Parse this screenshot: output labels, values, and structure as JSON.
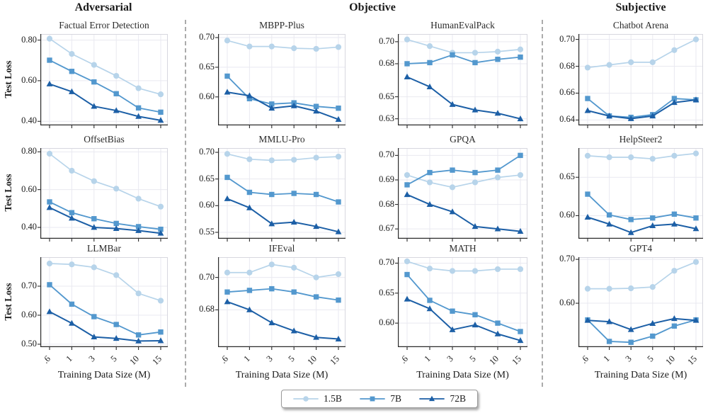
{
  "figure": {
    "y_label": "Test Loss",
    "x_label": "Training Data Size (M)",
    "x_ticks": [
      ".6",
      "1",
      "3",
      "5",
      "10",
      "15"
    ]
  },
  "groups": [
    {
      "label": "Adversarial"
    },
    {
      "label": "Objective"
    },
    {
      "label": "Subjective"
    }
  ],
  "legend": [
    {
      "label": "1.5B",
      "marker": "circle",
      "color": "#b7d4ea"
    },
    {
      "label": "7B",
      "marker": "square",
      "color": "#5398ce"
    },
    {
      "label": "72B",
      "marker": "triangle",
      "color": "#1c5fa6"
    }
  ],
  "chart_data": [
    {
      "type": "line",
      "title": "Factual Error Detection",
      "group": "Adversarial",
      "categories": [
        ".6",
        "1",
        "3",
        "5",
        "10",
        "15"
      ],
      "ylim": [
        0.38,
        0.83
      ],
      "yticks": [
        0.4,
        0.6,
        0.8
      ],
      "series": [
        {
          "name": "1.5B",
          "values": [
            0.807,
            0.732,
            0.678,
            0.624,
            0.563,
            0.533
          ]
        },
        {
          "name": "7B",
          "values": [
            0.701,
            0.646,
            0.594,
            0.536,
            0.466,
            0.445
          ]
        },
        {
          "name": "72B",
          "values": [
            0.584,
            0.546,
            0.474,
            0.453,
            0.424,
            0.405
          ]
        }
      ]
    },
    {
      "type": "line",
      "title": "MBPP-Plus",
      "group": "Objective",
      "categories": [
        ".6",
        "1",
        "3",
        "5",
        "10",
        "15"
      ],
      "ylim": [
        0.552,
        0.706
      ],
      "yticks": [
        0.6,
        0.65,
        0.7
      ],
      "series": [
        {
          "name": "1.5B",
          "values": [
            0.695,
            0.685,
            0.685,
            0.682,
            0.681,
            0.684
          ]
        },
        {
          "name": "7B",
          "values": [
            0.635,
            0.597,
            0.588,
            0.59,
            0.584,
            0.581
          ]
        },
        {
          "name": "72B",
          "values": [
            0.608,
            0.602,
            0.581,
            0.585,
            0.576,
            0.562
          ]
        }
      ]
    },
    {
      "type": "line",
      "title": "HumanEvalPack",
      "group": "Objective",
      "categories": [
        ".6",
        "1",
        "3",
        "5",
        "10",
        "15"
      ],
      "ylim": [
        0.624,
        0.707
      ],
      "yticks": [
        0.63,
        0.65,
        0.68,
        0.7
      ],
      "series": [
        {
          "name": "1.5B",
          "values": [
            0.702,
            0.696,
            0.69,
            0.69,
            0.691,
            0.693
          ]
        },
        {
          "name": "7B",
          "values": [
            0.68,
            0.681,
            0.688,
            0.681,
            0.684,
            0.686
          ]
        },
        {
          "name": "72B",
          "values": [
            0.668,
            0.659,
            0.643,
            0.638,
            0.635,
            0.63
          ]
        }
      ]
    },
    {
      "type": "line",
      "title": "Chatbot Arena",
      "group": "Subjective",
      "categories": [
        ".6",
        "1",
        "3",
        "5",
        "10",
        "15"
      ],
      "ylim": [
        0.636,
        0.704
      ],
      "yticks": [
        0.64,
        0.66,
        0.68,
        0.7
      ],
      "series": [
        {
          "name": "1.5B",
          "values": [
            0.679,
            0.681,
            0.683,
            0.683,
            0.692,
            0.7
          ]
        },
        {
          "name": "7B",
          "values": [
            0.656,
            0.643,
            0.642,
            0.644,
            0.656,
            0.655
          ]
        },
        {
          "name": "72B",
          "values": [
            0.647,
            0.643,
            0.641,
            0.643,
            0.653,
            0.655
          ]
        }
      ]
    },
    {
      "type": "line",
      "title": "OffsetBias",
      "group": "Adversarial",
      "categories": [
        ".6",
        "1",
        "3",
        "5",
        "10",
        "15"
      ],
      "ylim": [
        0.34,
        0.82
      ],
      "yticks": [
        0.4,
        0.6,
        0.8
      ],
      "series": [
        {
          "name": "1.5B",
          "values": [
            0.79,
            0.7,
            0.645,
            0.605,
            0.552,
            0.51
          ]
        },
        {
          "name": "7B",
          "values": [
            0.535,
            0.478,
            0.446,
            0.421,
            0.404,
            0.39
          ]
        },
        {
          "name": "72B",
          "values": [
            0.505,
            0.449,
            0.4,
            0.394,
            0.383,
            0.369
          ]
        }
      ]
    },
    {
      "type": "line",
      "title": "MMLU-Pro",
      "group": "Objective",
      "categories": [
        ".6",
        "1",
        "3",
        "5",
        "10",
        "15"
      ],
      "ylim": [
        0.538,
        0.708
      ],
      "yticks": [
        0.55,
        0.6,
        0.65,
        0.7
      ],
      "series": [
        {
          "name": "1.5B",
          "values": [
            0.697,
            0.687,
            0.685,
            0.686,
            0.69,
            0.692
          ]
        },
        {
          "name": "7B",
          "values": [
            0.653,
            0.625,
            0.621,
            0.623,
            0.621,
            0.607
          ]
        },
        {
          "name": "72B",
          "values": [
            0.613,
            0.596,
            0.566,
            0.569,
            0.561,
            0.551
          ]
        }
      ]
    },
    {
      "type": "line",
      "title": "GPQA",
      "group": "Objective",
      "categories": [
        ".6",
        "1",
        "3",
        "5",
        "10",
        "15"
      ],
      "ylim": [
        0.666,
        0.703
      ],
      "yticks": [
        0.67,
        0.68,
        0.69,
        0.7
      ],
      "series": [
        {
          "name": "1.5B",
          "values": [
            0.692,
            0.689,
            0.687,
            0.689,
            0.691,
            0.692
          ]
        },
        {
          "name": "7B",
          "values": [
            0.688,
            0.693,
            0.694,
            0.693,
            0.694,
            0.7
          ]
        },
        {
          "name": "72B",
          "values": [
            0.684,
            0.68,
            0.677,
            0.671,
            0.67,
            0.669
          ]
        }
      ]
    },
    {
      "type": "line",
      "title": "HelpSteer2",
      "group": "Subjective",
      "categories": [
        ".6",
        "1",
        "3",
        "5",
        "10",
        "15"
      ],
      "ylim": [
        0.57,
        0.688
      ],
      "yticks": [
        0.6,
        0.65
      ],
      "series": [
        {
          "name": "1.5B",
          "values": [
            0.678,
            0.676,
            0.676,
            0.674,
            0.678,
            0.681
          ]
        },
        {
          "name": "7B",
          "values": [
            0.628,
            0.601,
            0.595,
            0.597,
            0.602,
            0.597
          ]
        },
        {
          "name": "72B",
          "values": [
            0.598,
            0.589,
            0.578,
            0.587,
            0.589,
            0.583
          ]
        }
      ]
    },
    {
      "type": "line",
      "title": "LLMBar",
      "group": "Adversarial",
      "categories": [
        ".6",
        "1",
        "3",
        "5",
        "10",
        "15"
      ],
      "ylim": [
        0.49,
        0.8
      ],
      "yticks": [
        0.5,
        0.6,
        0.7
      ],
      "series": [
        {
          "name": "1.5B",
          "values": [
            0.778,
            0.775,
            0.765,
            0.738,
            0.675,
            0.65
          ]
        },
        {
          "name": "7B",
          "values": [
            0.705,
            0.638,
            0.595,
            0.568,
            0.532,
            0.542
          ]
        },
        {
          "name": "72B",
          "values": [
            0.612,
            0.572,
            0.525,
            0.52,
            0.511,
            0.512
          ]
        }
      ]
    },
    {
      "type": "line",
      "title": "IFEval",
      "group": "Objective",
      "categories": [
        ".6",
        "1",
        "3",
        "5",
        "10",
        "15"
      ],
      "ylim": [
        0.657,
        0.7125
      ],
      "yticks": [
        0.68,
        0.7
      ],
      "series": [
        {
          "name": "1.5B",
          "values": [
            0.703,
            0.703,
            0.708,
            0.706,
            0.7,
            0.702
          ]
        },
        {
          "name": "7B",
          "values": [
            0.691,
            0.692,
            0.693,
            0.691,
            0.688,
            0.686
          ]
        },
        {
          "name": "72B",
          "values": [
            0.685,
            0.68,
            0.672,
            0.667,
            0.663,
            0.662
          ]
        }
      ]
    },
    {
      "type": "line",
      "title": "MATH",
      "group": "Objective",
      "categories": [
        ".6",
        "1",
        "3",
        "5",
        "10",
        "15"
      ],
      "ylim": [
        0.56,
        0.71
      ],
      "yticks": [
        0.6,
        0.65,
        0.7
      ],
      "series": [
        {
          "name": "1.5B",
          "values": [
            0.703,
            0.691,
            0.687,
            0.687,
            0.69,
            0.69
          ]
        },
        {
          "name": "7B",
          "values": [
            0.681,
            0.638,
            0.62,
            0.614,
            0.6,
            0.586
          ]
        },
        {
          "name": "72B",
          "values": [
            0.64,
            0.624,
            0.589,
            0.597,
            0.582,
            0.571
          ]
        }
      ]
    },
    {
      "type": "line",
      "title": "GPT4",
      "group": "Subjective",
      "categories": [
        ".6",
        "1",
        "3",
        "5",
        "10",
        "15"
      ],
      "ylim": [
        0.5,
        0.705
      ],
      "yticks": [
        0.6,
        0.7
      ],
      "series": [
        {
          "name": "1.5B",
          "values": [
            0.633,
            0.633,
            0.634,
            0.637,
            0.674,
            0.694
          ]
        },
        {
          "name": "7B",
          "values": [
            0.562,
            0.513,
            0.511,
            0.525,
            0.548,
            0.562
          ]
        },
        {
          "name": "72B",
          "values": [
            0.561,
            0.558,
            0.54,
            0.554,
            0.565,
            0.561
          ]
        }
      ]
    }
  ]
}
